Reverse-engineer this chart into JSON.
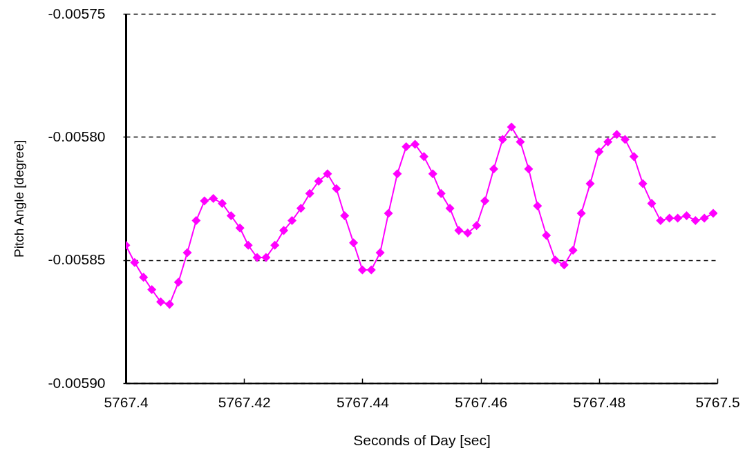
{
  "chart_data": {
    "type": "line",
    "xlabel": "Seconds of Day [sec]",
    "ylabel": "Pitch Angle [degree]",
    "x": [
      5767.4,
      5767.4015,
      5767.403,
      5767.4044,
      5767.4059,
      5767.4074,
      5767.4089,
      5767.4104,
      5767.4119,
      5767.4133,
      5767.4148,
      5767.4163,
      5767.4178,
      5767.4193,
      5767.4207,
      5767.4222,
      5767.4237,
      5767.4252,
      5767.4267,
      5767.4281,
      5767.4296,
      5767.4311,
      5767.4326,
      5767.4341,
      5767.4356,
      5767.437,
      5767.4385,
      5767.44,
      5767.4415,
      5767.443,
      5767.4444,
      5767.4459,
      5767.4474,
      5767.4489,
      5767.4504,
      5767.4519,
      5767.4533,
      5767.4548,
      5767.4563,
      5767.4578,
      5767.4593,
      5767.4607,
      5767.4622,
      5767.4637,
      5767.4652,
      5767.4667,
      5767.4681,
      5767.4696,
      5767.4711,
      5767.4726,
      5767.4741,
      5767.4756,
      5767.477,
      5767.4785,
      5767.48,
      5767.4815,
      5767.483,
      5767.4844,
      5767.4859,
      5767.4874,
      5767.4889,
      5767.4904,
      5767.4919,
      5767.4933,
      5767.4948,
      5767.4963,
      5767.4978,
      5767.4993
    ],
    "series": [
      {
        "color": "#ff00ff",
        "values": [
          -0.005844,
          -0.005851,
          -0.005857,
          -0.005862,
          -0.005867,
          -0.005868,
          -0.005859,
          -0.005847,
          -0.005834,
          -0.005826,
          -0.005825,
          -0.005827,
          -0.005832,
          -0.005837,
          -0.005844,
          -0.005849,
          -0.005849,
          -0.005844,
          -0.005838,
          -0.005834,
          -0.005829,
          -0.005823,
          -0.005818,
          -0.005815,
          -0.005821,
          -0.005832,
          -0.005843,
          -0.005854,
          -0.005854,
          -0.005847,
          -0.005831,
          -0.005815,
          -0.005804,
          -0.005803,
          -0.005808,
          -0.005815,
          -0.005823,
          -0.005829,
          -0.005838,
          -0.005839,
          -0.005836,
          -0.005826,
          -0.005813,
          -0.005801,
          -0.005796,
          -0.005802,
          -0.005813,
          -0.005828,
          -0.00584,
          -0.00585,
          -0.005852,
          -0.005846,
          -0.005831,
          -0.005819,
          -0.005806,
          -0.005802,
          -0.005799,
          -0.005801,
          -0.005808,
          -0.005819,
          -0.005827,
          -0.005834,
          -0.005833,
          -0.005833,
          -0.005832,
          -0.005834,
          -0.005833,
          -0.005831
        ]
      }
    ],
    "xlim": [
      5767.4,
      5767.5
    ],
    "xticks": [
      5767.4,
      5767.42,
      5767.44,
      5767.46,
      5767.48,
      5767.5
    ],
    "ylim": [
      -0.0059,
      -0.00575
    ],
    "yticks": [
      {
        "value": -0.0059,
        "label": "-0.00590"
      },
      -0.00585,
      {
        "value": -0.0058,
        "label": "-0.00580"
      },
      -0.00575
    ],
    "grid": "y",
    "marker": "diamond",
    "line_style": "solid"
  }
}
